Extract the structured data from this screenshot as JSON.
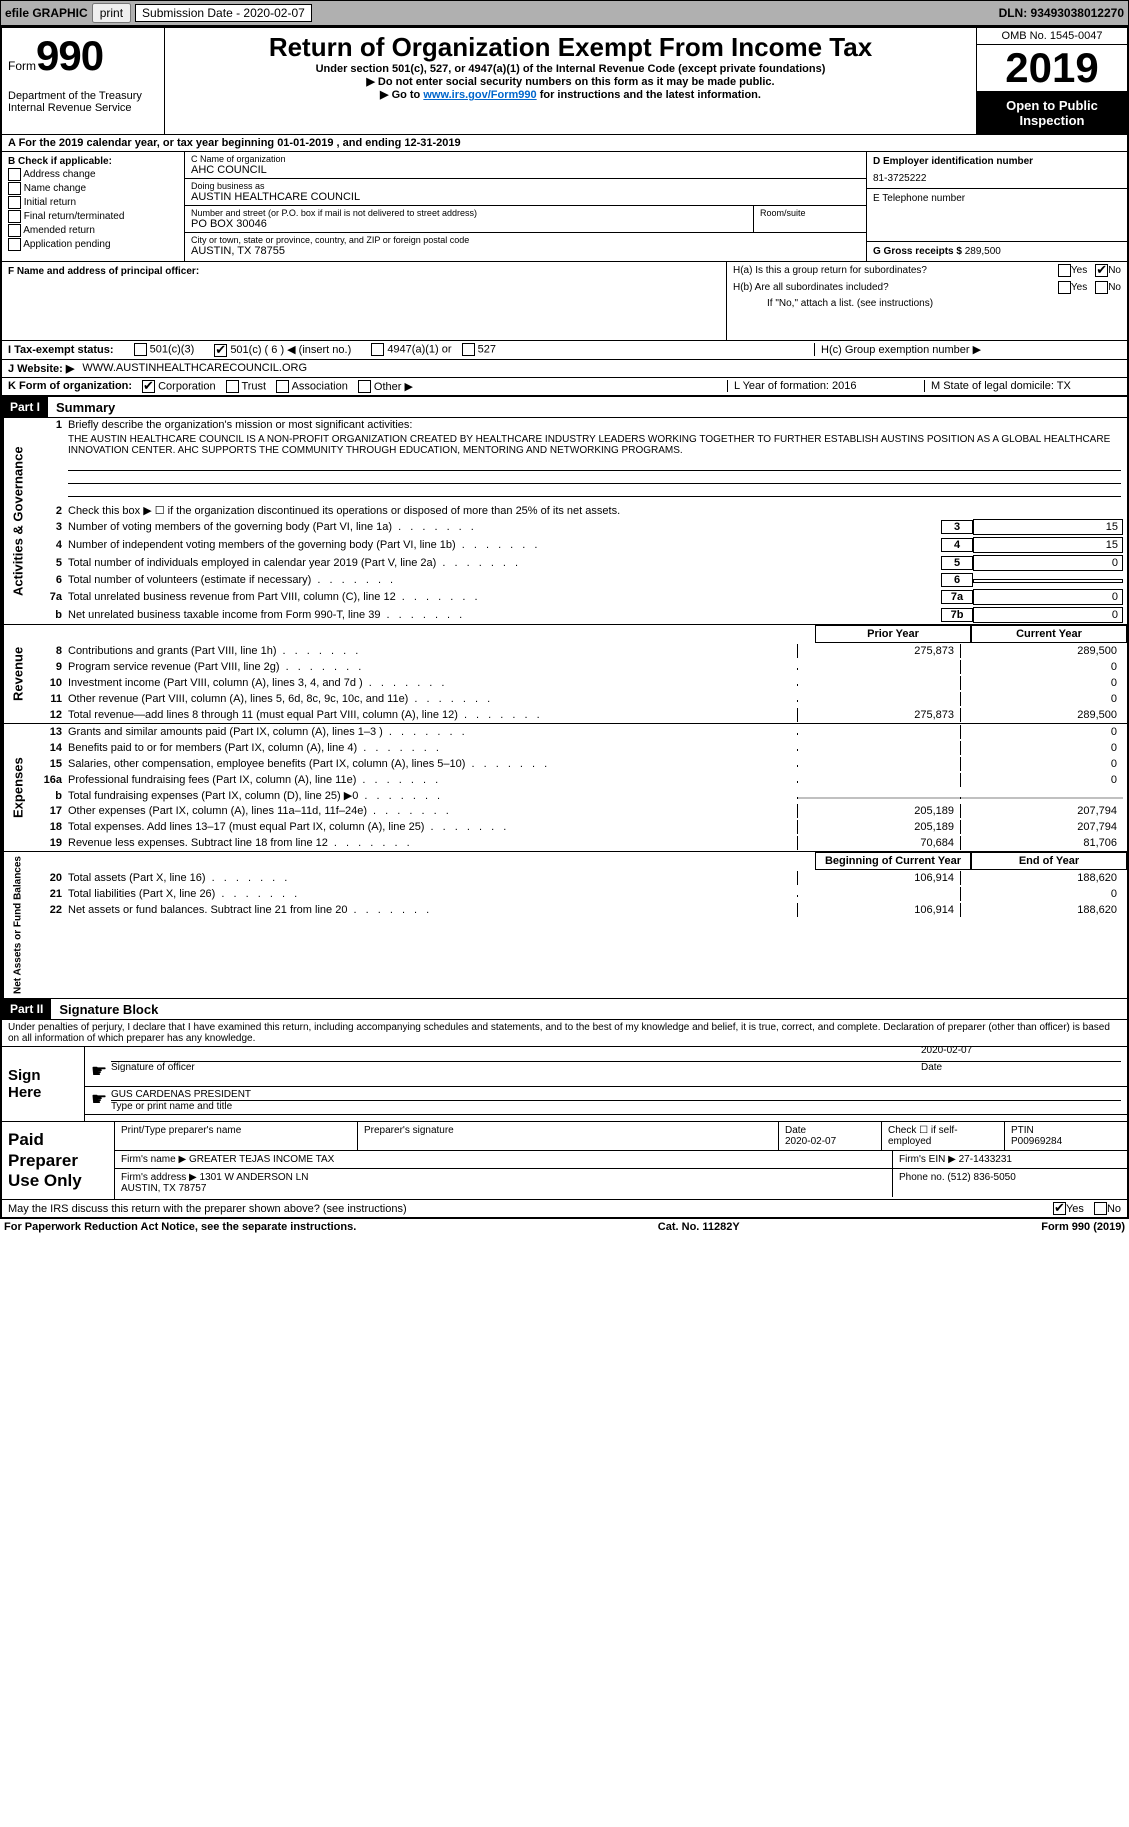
{
  "topbar": {
    "efile": "efile GRAPHIC",
    "print": "print",
    "submission": "Submission Date - 2020-02-07",
    "dln": "DLN: 93493038012270"
  },
  "header": {
    "form_word": "Form",
    "form_num": "990",
    "dept": "Department of the Treasury\nInternal Revenue Service",
    "title": "Return of Organization Exempt From Income Tax",
    "sub1": "Under section 501(c), 527, or 4947(a)(1) of the Internal Revenue Code (except private foundations)",
    "sub2": "▶ Do not enter social security numbers on this form as it may be made public.",
    "sub3_pre": "▶ Go to ",
    "sub3_link": "www.irs.gov/Form990",
    "sub3_post": " for instructions and the latest information.",
    "omb": "OMB No. 1545-0047",
    "year": "2019",
    "open": "Open to Public Inspection"
  },
  "period": "A For the 2019 calendar year, or tax year beginning 01-01-2019   , and ending 12-31-2019",
  "boxB": {
    "label": "B Check if applicable:",
    "items": [
      "Address change",
      "Name change",
      "Initial return",
      "Final return/terminated",
      "Amended return",
      "Application pending"
    ]
  },
  "boxC": {
    "name_label": "C Name of organization",
    "name": "AHC COUNCIL",
    "dba_label": "Doing business as",
    "dba": "AUSTIN HEALTHCARE COUNCIL",
    "addr_label": "Number and street (or P.O. box if mail is not delivered to street address)",
    "room_label": "Room/suite",
    "addr": "PO BOX 30046",
    "city_label": "City or town, state or province, country, and ZIP or foreign postal code",
    "city": "AUSTIN, TX  78755",
    "officer_label": "F Name and address of principal officer:"
  },
  "boxD": {
    "ein_label": "D Employer identification number",
    "ein": "81-3725222",
    "tel_label": "E Telephone number",
    "gross_label": "G Gross receipts $",
    "gross": "289,500"
  },
  "boxH": {
    "ha": "H(a)  Is this a group return for subordinates?",
    "hb": "H(b)  Are all subordinates included?",
    "hb_note": "If \"No,\" attach a list. (see instructions)",
    "hc": "H(c)  Group exemption number ▶",
    "yes": "Yes",
    "no": "No"
  },
  "boxI": {
    "label": "I   Tax-exempt status:",
    "c3": "501(c)(3)",
    "c": "501(c) ( 6 ) ◀ (insert no.)",
    "a1": "4947(a)(1) or",
    "s527": "527"
  },
  "boxJ": {
    "label": "J   Website: ▶",
    "val": "WWW.AUSTINHEALTHCARECOUNCIL.ORG"
  },
  "boxK": {
    "label": "K Form of organization:",
    "corp": "Corporation",
    "trust": "Trust",
    "assoc": "Association",
    "other": "Other ▶"
  },
  "boxL": "L Year of formation: 2016",
  "boxM": "M State of legal domicile: TX",
  "part1": {
    "header": "Part I",
    "title": "Summary",
    "q1": "Briefly describe the organization's mission or most significant activities:",
    "mission": "THE AUSTIN HEALTHCARE COUNCIL IS A NON-PROFIT ORGANIZATION CREATED BY HEALTHCARE INDUSTRY LEADERS WORKING TOGETHER TO FURTHER ESTABLISH AUSTINS POSITION AS A GLOBAL HEALTHCARE INNOVATION CENTER. AHC SUPPORTS THE COMMUNITY THROUGH EDUCATION, MENTORING AND NETWORKING PROGRAMS.",
    "q2": "Check this box ▶ ☐  if the organization discontinued its operations or disposed of more than 25% of its net assets.",
    "lines": [
      {
        "n": "3",
        "d": "Number of voting members of the governing body (Part VI, line 1a)",
        "b": "3",
        "v": "15"
      },
      {
        "n": "4",
        "d": "Number of independent voting members of the governing body (Part VI, line 1b)",
        "b": "4",
        "v": "15"
      },
      {
        "n": "5",
        "d": "Total number of individuals employed in calendar year 2019 (Part V, line 2a)",
        "b": "5",
        "v": "0"
      },
      {
        "n": "6",
        "d": "Total number of volunteers (estimate if necessary)",
        "b": "6",
        "v": ""
      },
      {
        "n": "7a",
        "d": "Total unrelated business revenue from Part VIII, column (C), line 12",
        "b": "7a",
        "v": "0"
      },
      {
        "n": "b",
        "d": "Net unrelated business taxable income from Form 990-T, line 39",
        "b": "7b",
        "v": "0"
      }
    ],
    "colA": "Prior Year",
    "colB": "Current Year",
    "revenue": [
      {
        "n": "8",
        "d": "Contributions and grants (Part VIII, line 1h)",
        "a": "275,873",
        "b": "289,500"
      },
      {
        "n": "9",
        "d": "Program service revenue (Part VIII, line 2g)",
        "a": "",
        "b": "0"
      },
      {
        "n": "10",
        "d": "Investment income (Part VIII, column (A), lines 3, 4, and 7d )",
        "a": "",
        "b": "0"
      },
      {
        "n": "11",
        "d": "Other revenue (Part VIII, column (A), lines 5, 6d, 8c, 9c, 10c, and 11e)",
        "a": "",
        "b": "0"
      },
      {
        "n": "12",
        "d": "Total revenue—add lines 8 through 11 (must equal Part VIII, column (A), line 12)",
        "a": "275,873",
        "b": "289,500"
      }
    ],
    "expenses": [
      {
        "n": "13",
        "d": "Grants and similar amounts paid (Part IX, column (A), lines 1–3 )",
        "a": "",
        "b": "0"
      },
      {
        "n": "14",
        "d": "Benefits paid to or for members (Part IX, column (A), line 4)",
        "a": "",
        "b": "0"
      },
      {
        "n": "15",
        "d": "Salaries, other compensation, employee benefits (Part IX, column (A), lines 5–10)",
        "a": "",
        "b": "0"
      },
      {
        "n": "16a",
        "d": "Professional fundraising fees (Part IX, column (A), line 11e)",
        "a": "",
        "b": "0"
      },
      {
        "n": "b",
        "d": "Total fundraising expenses (Part IX, column (D), line 25) ▶0",
        "a": "GRAY",
        "b": "GRAY"
      },
      {
        "n": "17",
        "d": "Other expenses (Part IX, column (A), lines 11a–11d, 11f–24e)",
        "a": "205,189",
        "b": "207,794"
      },
      {
        "n": "18",
        "d": "Total expenses. Add lines 13–17 (must equal Part IX, column (A), line 25)",
        "a": "205,189",
        "b": "207,794"
      },
      {
        "n": "19",
        "d": "Revenue less expenses. Subtract line 18 from line 12",
        "a": "70,684",
        "b": "81,706"
      }
    ],
    "colC": "Beginning of Current Year",
    "colD": "End of Year",
    "netassets": [
      {
        "n": "20",
        "d": "Total assets (Part X, line 16)",
        "a": "106,914",
        "b": "188,620"
      },
      {
        "n": "21",
        "d": "Total liabilities (Part X, line 26)",
        "a": "",
        "b": "0"
      },
      {
        "n": "22",
        "d": "Net assets or fund balances. Subtract line 21 from line 20",
        "a": "106,914",
        "b": "188,620"
      }
    ]
  },
  "part2": {
    "header": "Part II",
    "title": "Signature Block",
    "decl": "Under penalties of perjury, I declare that I have examined this return, including accompanying schedules and statements, and to the best of my knowledge and belief, it is true, correct, and complete. Declaration of preparer (other than officer) is based on all information of which preparer has any knowledge.",
    "sign_here": "Sign Here",
    "sig_officer": "Signature of officer",
    "sig_date": "Date",
    "sig_date_val": "2020-02-07",
    "officer_name": "GUS CARDENAS PRESIDENT",
    "type_name": "Type or print name and title",
    "paid": "Paid Preparer Use Only",
    "prep_name_label": "Print/Type preparer's name",
    "prep_sig_label": "Preparer's signature",
    "date_label": "Date",
    "date_val": "2020-02-07",
    "check_self": "Check ☐ if self-employed",
    "ptin_label": "PTIN",
    "ptin": "P00969284",
    "firm_name_label": "Firm's name    ▶",
    "firm_name": "GREATER TEJAS INCOME TAX",
    "firm_ein_label": "Firm's EIN ▶",
    "firm_ein": "27-1433231",
    "firm_addr_label": "Firm's address ▶",
    "firm_addr": "1301 W ANDERSON LN\nAUSTIN, TX  78757",
    "phone_label": "Phone no.",
    "phone": "(512) 836-5050",
    "discuss": "May the IRS discuss this return with the preparer shown above? (see instructions)"
  },
  "footer": {
    "pra": "For Paperwork Reduction Act Notice, see the separate instructions.",
    "cat": "Cat. No. 11282Y",
    "form": "Form 990 (2019)"
  },
  "vlabels": {
    "gov": "Activities & Governance",
    "rev": "Revenue",
    "exp": "Expenses",
    "net": "Net Assets or Fund Balances"
  }
}
